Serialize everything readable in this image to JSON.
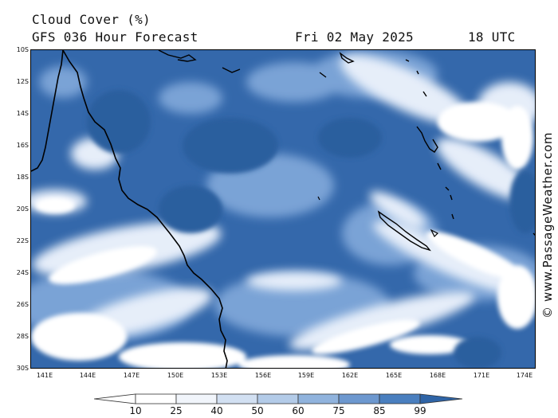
{
  "title": {
    "parameter": "Cloud Cover (%)",
    "model": "GFS 036 Hour Forecast",
    "date": "Fri 02 May 2025",
    "time": "18 UTC"
  },
  "latitude_labels": [
    "10S",
    "12S",
    "14S",
    "16S",
    "18S",
    "20S",
    "22S",
    "24S",
    "26S",
    "28S",
    "30S"
  ],
  "longitude_labels": [
    "141E",
    "144E",
    "147E",
    "150E",
    "153E",
    "156E",
    "159E",
    "162E",
    "165E",
    "168E",
    "171E",
    "174E"
  ],
  "credit": "© www.PassageWeather.com",
  "legend": {
    "labels": [
      "10",
      "25",
      "40",
      "50",
      "60",
      "75",
      "85",
      "99"
    ],
    "colors": [
      "#ffffff",
      "#f1f5fb",
      "#d2e0f2",
      "#b3cbe8",
      "#90b3dd",
      "#6d98cf",
      "#4a7fbf",
      "#2f64a6"
    ]
  },
  "map": {
    "lat_range": [
      -30,
      -10
    ],
    "lon_range": [
      140,
      175
    ],
    "cloud_colors": {
      "low": "#ffffff",
      "mid": "#9dbbe2",
      "high": "#3468ab",
      "max": "#2b5e9e"
    },
    "coastline_color": "#000000"
  }
}
